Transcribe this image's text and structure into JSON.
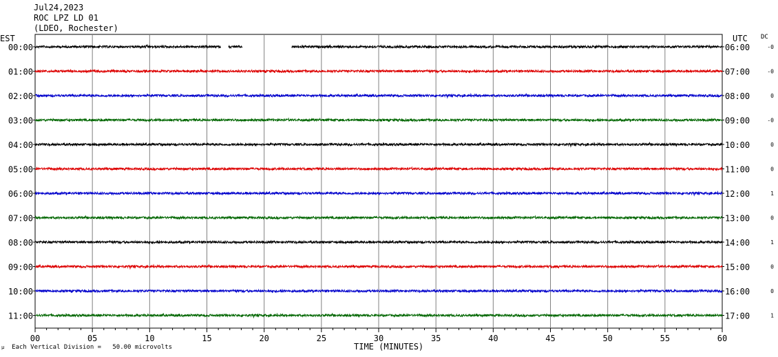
{
  "header": {
    "date": "Jul24,2023",
    "station": "ROC LPZ LD 01",
    "network": "(LDEO, Rochester)"
  },
  "left_axis_label": "EST",
  "right_axis_label": "UTC",
  "dc_label": "DC",
  "footer": {
    "scale_note": "Each Vertical Division =   50.00 microvolts",
    "logo_glyph": "μ"
  },
  "chart_data": {
    "type": "line",
    "xlabel": "TIME (MINUTES)",
    "x_ticks": [
      "00",
      "05",
      "10",
      "15",
      "20",
      "25",
      "30",
      "35",
      "40",
      "45",
      "50",
      "55",
      "60"
    ],
    "xlim": [
      0,
      60
    ],
    "gridlines_every_minutes": 5,
    "trace_colors": [
      "#000000",
      "#dd0000",
      "#0000cc",
      "#006600"
    ],
    "traces": [
      {
        "est": "00:00",
        "utc": "06:00",
        "dc": "-0",
        "gaps": [
          [
            16.2,
            16.9
          ],
          [
            18.1,
            22.4
          ]
        ]
      },
      {
        "est": "01:00",
        "utc": "07:00",
        "dc": "-0"
      },
      {
        "est": "02:00",
        "utc": "08:00",
        "dc": "0"
      },
      {
        "est": "03:00",
        "utc": "09:00",
        "dc": "-0"
      },
      {
        "est": "04:00",
        "utc": "10:00",
        "dc": "0"
      },
      {
        "est": "05:00",
        "utc": "11:00",
        "dc": "0"
      },
      {
        "est": "06:00",
        "utc": "12:00",
        "dc": "1"
      },
      {
        "est": "07:00",
        "utc": "13:00",
        "dc": "0"
      },
      {
        "est": "08:00",
        "utc": "14:00",
        "dc": "1"
      },
      {
        "est": "09:00",
        "utc": "15:00",
        "dc": "0"
      },
      {
        "est": "10:00",
        "utc": "16:00",
        "dc": "0"
      },
      {
        "est": "11:00",
        "utc": "17:00",
        "dc": "1"
      }
    ]
  }
}
